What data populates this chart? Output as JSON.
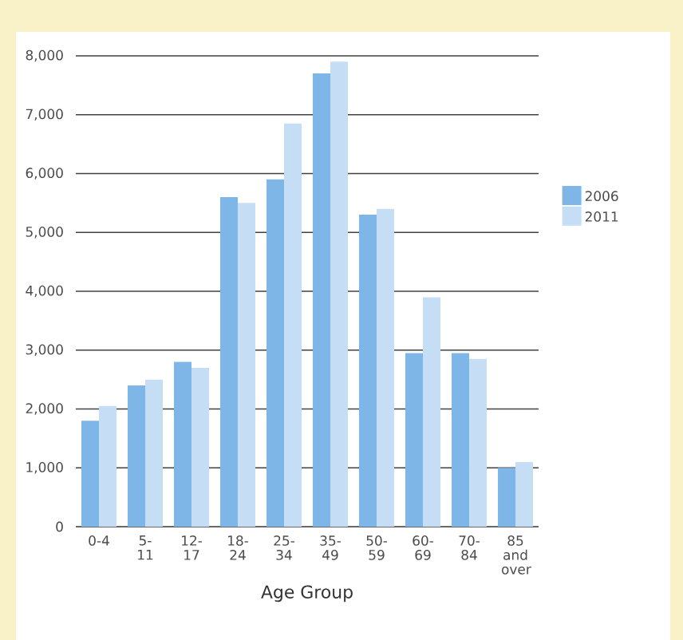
{
  "chart_data": {
    "type": "bar",
    "xlabel": "Age Group",
    "categories": [
      "0-4",
      "5-11",
      "12- 17",
      "18- 24",
      "25- 34",
      "35- 49",
      "50- 59",
      "60- 69",
      "70- 84",
      "85 and over"
    ],
    "series": [
      {
        "name": "2006",
        "color": "#7fb6e8",
        "values": [
          1800,
          2400,
          2800,
          5600,
          5900,
          7700,
          5300,
          2950,
          2950,
          1000
        ]
      },
      {
        "name": "2011",
        "color": "#c6def5",
        "values": [
          2050,
          2500,
          2700,
          5500,
          6850,
          7900,
          5400,
          3900,
          2850,
          1100
        ]
      }
    ],
    "ylim": [
      0,
      8000
    ],
    "yticks": [
      {
        "value": 0,
        "label": "0"
      },
      {
        "value": 1000,
        "label": "1,000"
      },
      {
        "value": 2000,
        "label": "2,000"
      },
      {
        "value": 3000,
        "label": "3,000"
      },
      {
        "value": 4000,
        "label": "4,000"
      },
      {
        "value": 5000,
        "label": "5,000"
      },
      {
        "value": 6000,
        "label": "6,000"
      },
      {
        "value": 7000,
        "label": "7,000"
      },
      {
        "value": 8000,
        "label": "8,000"
      }
    ],
    "grid": "y",
    "legend": "right"
  }
}
